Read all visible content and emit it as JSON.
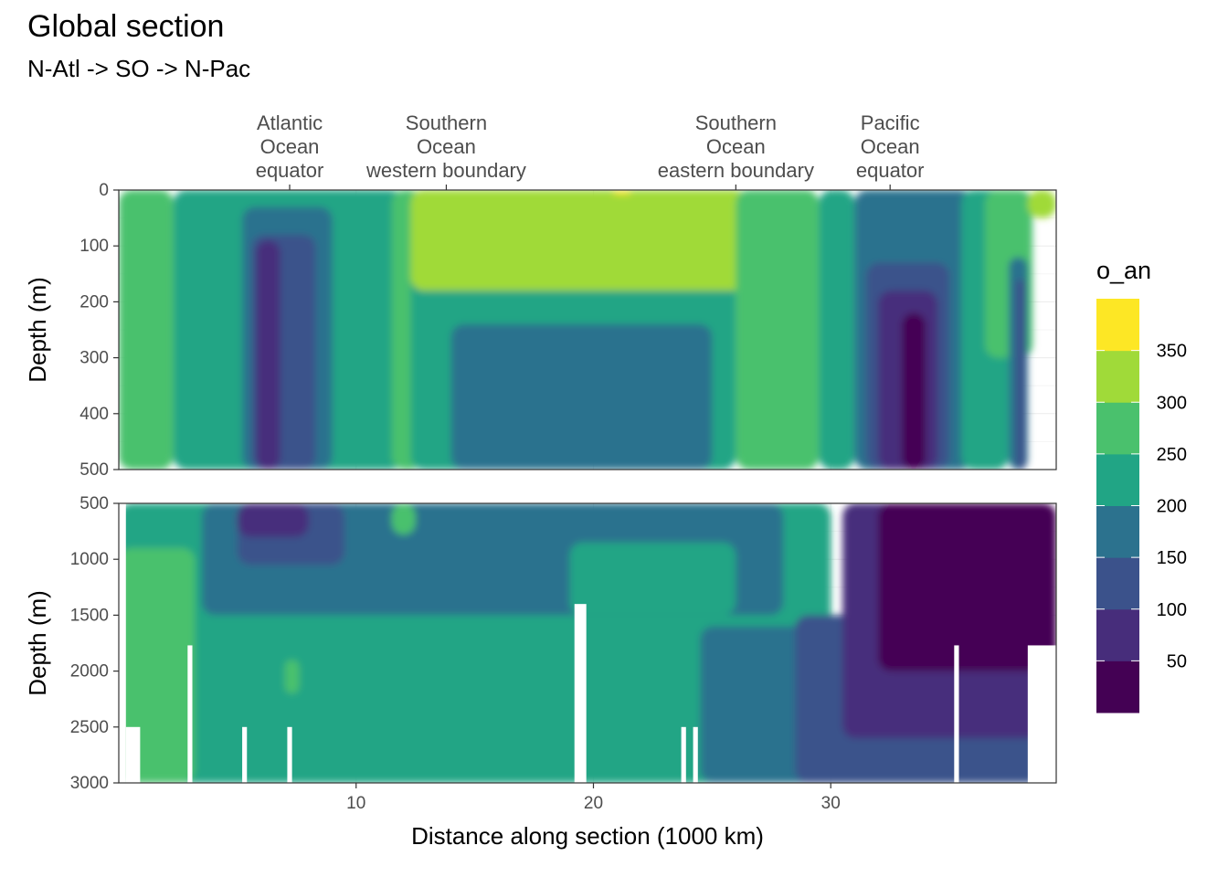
{
  "chart_data": {
    "type": "heatmap",
    "variant": "filled-contour",
    "title": "Global section",
    "subtitle": "N-Atl -> SO -> N-Pac",
    "xlabel": "Distance along section (1000 km)",
    "ylabel": "Depth (m)",
    "xlim": [
      0,
      39.5
    ],
    "x_ticks": [
      10,
      20,
      30
    ],
    "legend": {
      "title": "o_an",
      "position": "right",
      "breaks": [
        50,
        100,
        150,
        200,
        250,
        300,
        350
      ],
      "levels": [
        {
          "range": [
            0,
            50
          ],
          "color": "#440154"
        },
        {
          "range": [
            50,
            100
          ],
          "color": "#472D7B"
        },
        {
          "range": [
            100,
            150
          ],
          "color": "#3B528B"
        },
        {
          "range": [
            150,
            200
          ],
          "color": "#2C728E"
        },
        {
          "range": [
            200,
            250
          ],
          "color": "#21A585"
        },
        {
          "range": [
            250,
            300
          ],
          "color": "#4AC16D"
        },
        {
          "range": [
            300,
            350
          ],
          "color": "#A0DA39"
        },
        {
          "range": [
            350,
            400
          ],
          "color": "#FDE725"
        }
      ]
    },
    "section_labels": [
      {
        "x": 7.2,
        "lines": [
          "Atlantic",
          "Ocean",
          "equator"
        ]
      },
      {
        "x": 13.8,
        "lines": [
          "Southern",
          "Ocean",
          "western boundary"
        ]
      },
      {
        "x": 26.0,
        "lines": [
          "Southern",
          "Ocean",
          "eastern boundary"
        ]
      },
      {
        "x": 32.5,
        "lines": [
          "Pacific",
          "Ocean",
          "equator"
        ]
      }
    ],
    "panels": [
      {
        "name": "upper",
        "ylim": [
          0,
          500
        ],
        "y_ticks": [
          0,
          100,
          200,
          300,
          400,
          500
        ],
        "regions": [
          {
            "level": 250,
            "x0": 0,
            "x1": 2.3,
            "y0": 0,
            "y1": 500
          },
          {
            "level": 200,
            "x0": 2.3,
            "x1": 12.0,
            "y0": 0,
            "y1": 500
          },
          {
            "level": 150,
            "x0": 5.2,
            "x1": 9.0,
            "y0": 30,
            "y1": 500
          },
          {
            "level": 100,
            "x0": 5.6,
            "x1": 8.3,
            "y0": 80,
            "y1": 500
          },
          {
            "level": 50,
            "x0": 5.8,
            "x1": 6.8,
            "y0": 90,
            "y1": 500
          },
          {
            "level": 250,
            "x0": 11.5,
            "x1": 12.8,
            "y0": 0,
            "y1": 500
          },
          {
            "level": 200,
            "x0": 12.3,
            "x1": 26.0,
            "y0": 0,
            "y1": 500
          },
          {
            "level": 150,
            "x0": 14.0,
            "x1": 25.0,
            "y0": 240,
            "y1": 500
          },
          {
            "level": 300,
            "x0": 12.3,
            "x1": 26.5,
            "y0": 0,
            "y1": 180
          },
          {
            "level": 350,
            "x0": 20.8,
            "x1": 21.6,
            "y0": 0,
            "y1": 8
          },
          {
            "level": 250,
            "x0": 26.0,
            "x1": 29.5,
            "y0": 0,
            "y1": 500
          },
          {
            "level": 200,
            "x0": 29.5,
            "x1": 31.0,
            "y0": 0,
            "y1": 500
          },
          {
            "level": 150,
            "x0": 31.0,
            "x1": 36.0,
            "y0": 0,
            "y1": 500
          },
          {
            "level": 100,
            "x0": 31.5,
            "x1": 35.0,
            "y0": 130,
            "y1": 500
          },
          {
            "level": 50,
            "x0": 32.0,
            "x1": 34.5,
            "y0": 180,
            "y1": 500
          },
          {
            "level": 0,
            "x0": 33.0,
            "x1": 34.0,
            "y0": 220,
            "y1": 500
          },
          {
            "level": 200,
            "x0": 35.5,
            "x1": 37.5,
            "y0": 0,
            "y1": 500
          },
          {
            "level": 250,
            "x0": 36.5,
            "x1": 38.5,
            "y0": 0,
            "y1": 300
          },
          {
            "level": 150,
            "x0": 37.5,
            "x1": 38.3,
            "y0": 120,
            "y1": 500
          },
          {
            "level": 100,
            "x0": 37.8,
            "x1": 38.2,
            "y0": 160,
            "y1": 500
          },
          {
            "level": 300,
            "x0": 38.3,
            "x1": 39.5,
            "y0": 0,
            "y1": 50
          }
        ]
      },
      {
        "name": "lower",
        "ylim": [
          500,
          3000
        ],
        "y_ticks": [
          500,
          1000,
          1500,
          2000,
          2500,
          3000
        ],
        "regions": [
          {
            "level": 200,
            "x0": 0,
            "x1": 30.0,
            "y0": 500,
            "y1": 3000
          },
          {
            "level": 250,
            "x0": 0,
            "x1": 3.2,
            "y0": 900,
            "y1": 3000
          },
          {
            "level": 150,
            "x0": 3.5,
            "x1": 28.0,
            "y0": 500,
            "y1": 1500
          },
          {
            "level": 200,
            "x0": 19.0,
            "x1": 26.0,
            "y0": 850,
            "y1": 1500
          },
          {
            "level": 100,
            "x0": 5.0,
            "x1": 9.5,
            "y0": 500,
            "y1": 1050
          },
          {
            "level": 50,
            "x0": 5.0,
            "x1": 8.0,
            "y0": 500,
            "y1": 800
          },
          {
            "level": 150,
            "x0": 24.5,
            "x1": 39.5,
            "y0": 1600,
            "y1": 3000
          },
          {
            "level": 100,
            "x0": 28.5,
            "x1": 39.5,
            "y0": 1500,
            "y1": 3000
          },
          {
            "level": 50,
            "x0": 30.5,
            "x1": 39.5,
            "y0": 500,
            "y1": 2600
          },
          {
            "level": 0,
            "x0": 32.0,
            "x1": 39.5,
            "y0": 500,
            "y1": 2000
          },
          {
            "level": 250,
            "x0": 11.5,
            "x1": 12.5,
            "y0": 500,
            "y1": 780
          },
          {
            "level": 250,
            "x0": 7.0,
            "x1": 7.6,
            "y0": 1900,
            "y1": 2200
          }
        ],
        "no_data": [
          {
            "x0": 0,
            "x1": 0.3,
            "y0": 500,
            "y1": 3000
          },
          {
            "x0": 0.3,
            "x1": 0.9,
            "y0": 2500,
            "y1": 3000
          },
          {
            "x0": 2.9,
            "x1": 3.1,
            "y0": 1770,
            "y1": 3000
          },
          {
            "x0": 5.2,
            "x1": 5.4,
            "y0": 2500,
            "y1": 3000
          },
          {
            "x0": 7.1,
            "x1": 7.3,
            "y0": 2500,
            "y1": 3000
          },
          {
            "x0": 19.2,
            "x1": 19.7,
            "y0": 1400,
            "y1": 3000
          },
          {
            "x0": 23.7,
            "x1": 23.9,
            "y0": 2500,
            "y1": 3000
          },
          {
            "x0": 24.2,
            "x1": 24.4,
            "y0": 2500,
            "y1": 3000
          },
          {
            "x0": 35.2,
            "x1": 35.4,
            "y0": 1770,
            "y1": 3000
          },
          {
            "x0": 38.3,
            "x1": 39.5,
            "y0": 1770,
            "y1": 3000
          }
        ]
      }
    ]
  }
}
